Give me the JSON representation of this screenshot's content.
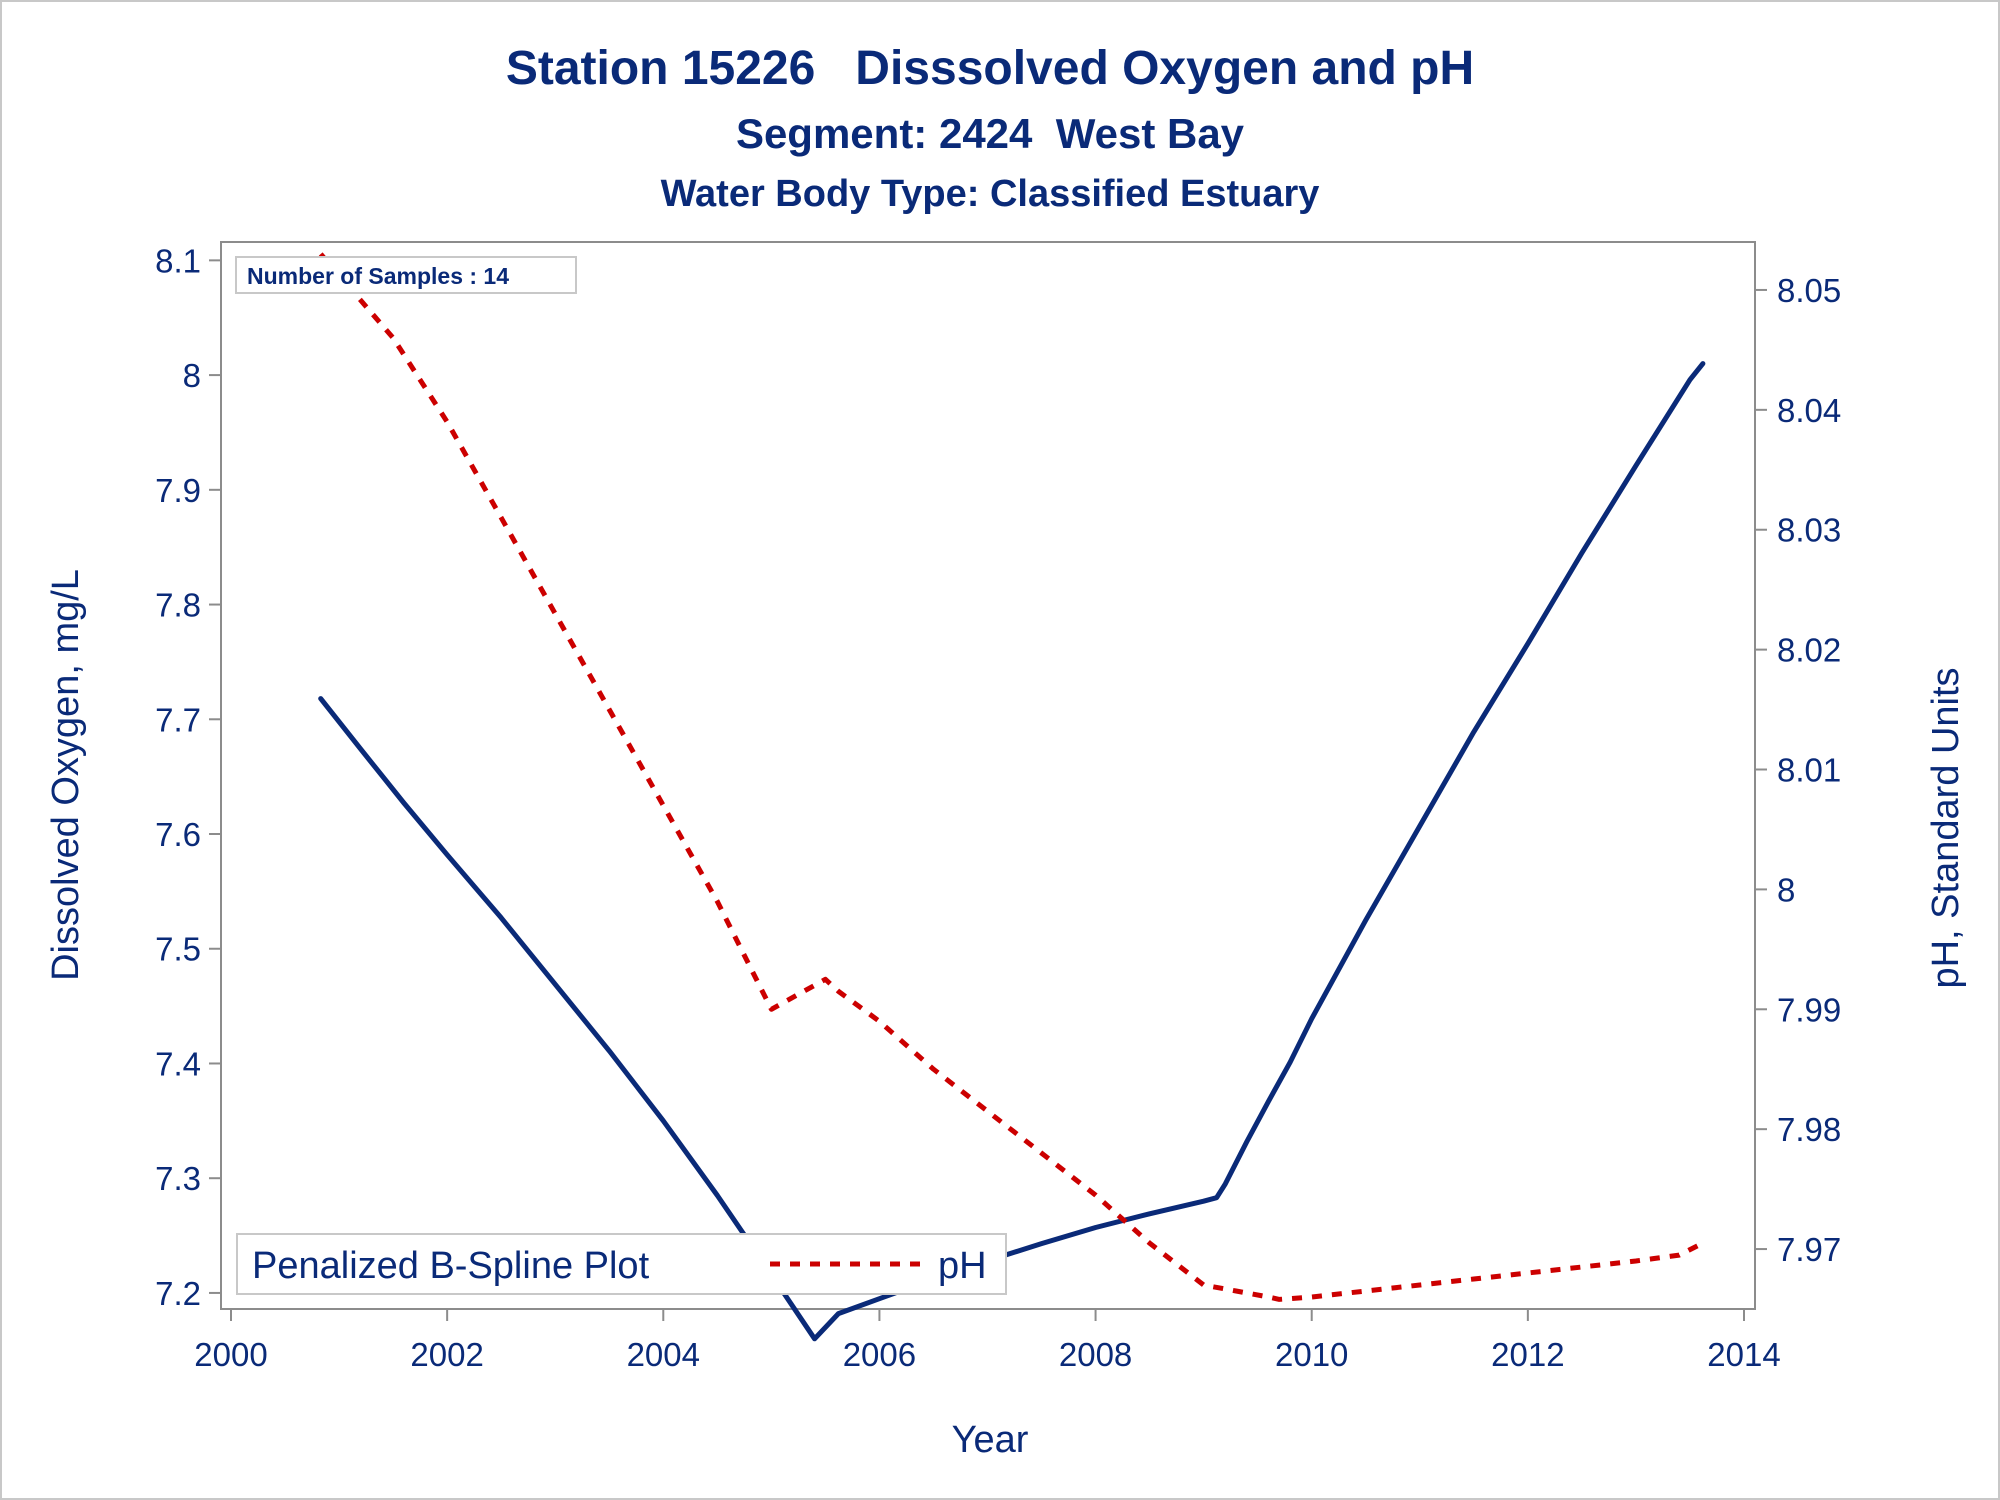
{
  "chart_data": {
    "type": "line",
    "title": "Station 15226   Disssolved Oxygen and pH",
    "subtitle": "Segment: 2424  West Bay",
    "subtitle2": "Water Body Type: Classified Estuary",
    "xlabel": "Year",
    "ylabel": "Dissolved Oxygen, mg/L",
    "y2label": "pH, Standard Units",
    "xlim": [
      2000,
      2014
    ],
    "ylim": [
      7.186,
      8.116
    ],
    "y2lim": [
      7.965,
      8.054
    ],
    "xticks": [
      "2000",
      "2002",
      "2004",
      "2006",
      "2008",
      "2010",
      "2012",
      "2014"
    ],
    "yticks": [
      "7.2",
      "7.3",
      "7.4",
      "7.5",
      "7.6",
      "7.7",
      "7.8",
      "7.9",
      "8",
      "8.1"
    ],
    "y2ticks": [
      "7.97",
      "7.98",
      "7.99",
      "8",
      "8.01",
      "8.02",
      "8.03",
      "8.04",
      "8.05"
    ],
    "annotation": "Number of Samples : 14",
    "legend_title": "Penalized B-Spline Plot",
    "legend_position": "bottom-left",
    "grid": false,
    "series": [
      {
        "name": "",
        "axis": "left",
        "color": "#0a2a78",
        "style": "solid",
        "x": [
          2000.83,
          2001.2,
          2001.6,
          2002.0,
          2002.5,
          2003.0,
          2003.5,
          2004.0,
          2004.5,
          2005.0,
          2005.4,
          2005.62,
          2006.0,
          2006.5,
          2007.0,
          2007.5,
          2008.0,
          2008.5,
          2009.0,
          2009.12,
          2009.2,
          2009.4,
          2009.6,
          2009.8,
          2010.0,
          2010.5,
          2011.0,
          2011.5,
          2012.0,
          2012.5,
          2013.0,
          2013.5,
          2013.62
        ],
        "values": [
          7.718,
          7.674,
          7.627,
          7.582,
          7.527,
          7.469,
          7.411,
          7.35,
          7.285,
          7.216,
          7.16,
          7.182,
          7.195,
          7.212,
          7.228,
          7.243,
          7.257,
          7.269,
          7.28,
          7.283,
          7.295,
          7.332,
          7.367,
          7.401,
          7.439,
          7.525,
          7.607,
          7.689,
          7.766,
          7.845,
          7.921,
          7.996,
          8.01
        ]
      },
      {
        "name": "pH",
        "axis": "right",
        "color": "#cc0000",
        "style": "dashed",
        "x": [
          2000.83,
          2001.5,
          2002.0,
          2002.5,
          2003.0,
          2003.5,
          2004.0,
          2004.5,
          2005.0,
          2005.5,
          2005.62,
          2006.0,
          2006.5,
          2007.0,
          2007.5,
          2008.0,
          2008.5,
          2009.0,
          2009.3,
          2009.6,
          2009.7,
          2010.0,
          2010.5,
          2011.0,
          2011.5,
          2012.0,
          2012.5,
          2013.0,
          2013.4,
          2013.62
        ],
        "values": [
          8.053,
          8.046,
          8.039,
          8.031,
          8.023,
          8.015,
          8.007,
          7.999,
          7.99,
          7.9925,
          7.9915,
          7.989,
          7.985,
          7.9815,
          7.978,
          7.9745,
          7.9705,
          7.967,
          7.9665,
          7.966,
          7.9658,
          7.966,
          7.9665,
          7.967,
          7.9675,
          7.968,
          7.9685,
          7.969,
          7.9695,
          7.9705
        ]
      }
    ]
  }
}
